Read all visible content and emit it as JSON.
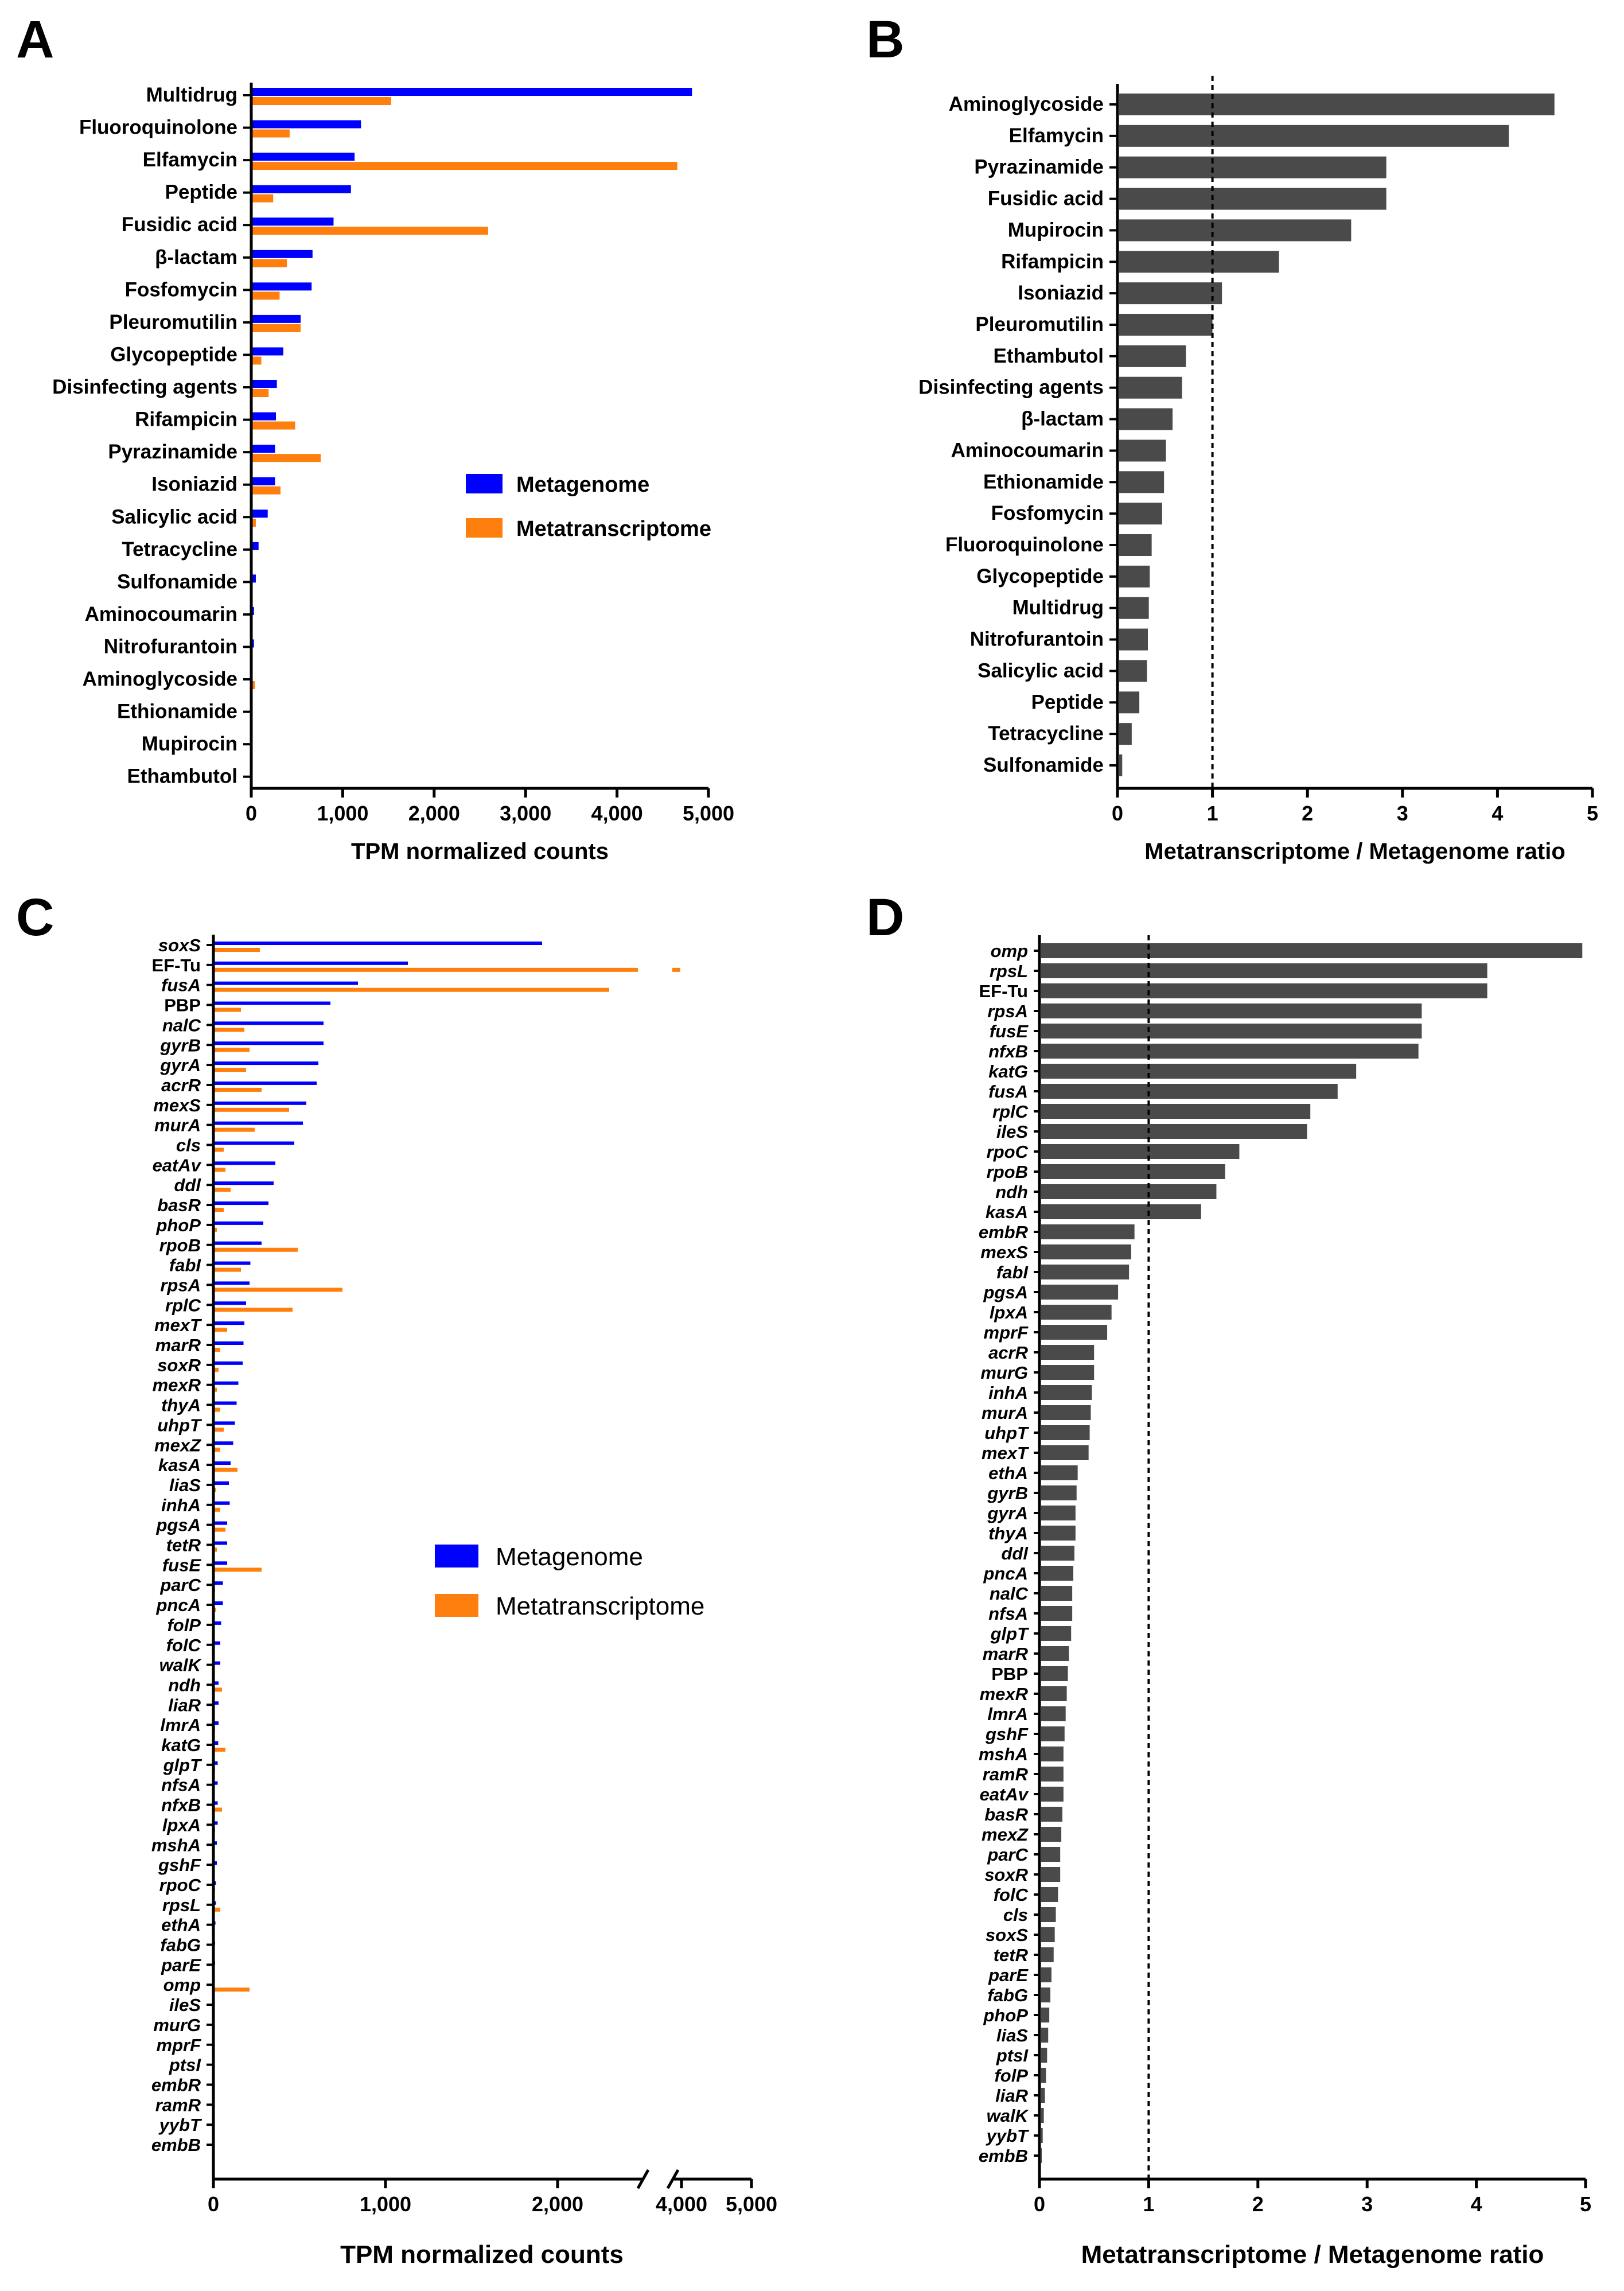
{
  "colors": {
    "metagenome": "#0000ff",
    "metatranscriptome": "#ff7f0e",
    "ratio_bar": "#4a4a4a",
    "axis": "#000000"
  },
  "legend": {
    "metagenome": "Metagenome",
    "metatranscriptome": "Metatranscriptome"
  },
  "chart_data": [
    {
      "panel": "A",
      "type": "bar",
      "orientation": "horizontal",
      "title": "",
      "xlabel": "TPM normalized counts",
      "ylabel": "",
      "xlim": [
        0,
        5000
      ],
      "xticks": [
        0,
        1000,
        2000,
        3000,
        4000,
        5000
      ],
      "xtick_labels": [
        "0",
        "1,000",
        "2,000",
        "3,000",
        "4,000",
        "5,000"
      ],
      "legend_position": "center-right",
      "categories": [
        "Multidrug",
        "Fluoroquinolone",
        "Elfamycin",
        "Peptide",
        "Fusidic acid",
        "β-lactam",
        "Fosfomycin",
        "Pleuromutilin",
        "Glycopeptide",
        "Disinfecting agents",
        "Rifampicin",
        "Pyrazinamide",
        "Isoniazid",
        "Salicylic acid",
        "Tetracycline",
        "Sulfonamide",
        "Aminocoumarin",
        "Nitrofurantoin",
        "Aminoglycoside",
        "Ethionamide",
        "Mupirocin",
        "Ethambutol"
      ],
      "series": [
        {
          "name": "Metagenome",
          "values": [
            4820,
            1200,
            1130,
            1090,
            900,
            670,
            660,
            540,
            350,
            280,
            270,
            260,
            260,
            180,
            80,
            50,
            30,
            30,
            15,
            5,
            3,
            3
          ]
        },
        {
          "name": "Metatranscriptome",
          "values": [
            1530,
            420,
            4660,
            240,
            2590,
            390,
            310,
            540,
            110,
            190,
            480,
            760,
            320,
            50,
            15,
            10,
            10,
            10,
            40,
            3,
            3,
            3
          ]
        }
      ]
    },
    {
      "panel": "B",
      "type": "bar",
      "orientation": "horizontal",
      "title": "",
      "xlabel": "Metatranscriptome / Metagenome ratio",
      "ylabel": "",
      "xlim": [
        0,
        5
      ],
      "xticks": [
        0,
        1,
        2,
        3,
        4,
        5
      ],
      "xtick_labels": [
        "0",
        "1",
        "2",
        "3",
        "4",
        "5"
      ],
      "reference_line": 1,
      "categories": [
        "Aminoglycoside",
        "Elfamycin",
        "Pyrazinamide",
        "Fusidic acid",
        "Mupirocin",
        "Rifampicin",
        "Isoniazid",
        "Pleuromutilin",
        "Ethambutol",
        "Disinfecting agents",
        "β-lactam",
        "Aminocoumarin",
        "Ethionamide",
        "Fosfomycin",
        "Fluoroquinolone",
        "Glycopeptide",
        "Multidrug",
        "Nitrofurantoin",
        "Salicylic acid",
        "Peptide",
        "Tetracycline",
        "Sulfonamide"
      ],
      "values": [
        4.6,
        4.12,
        2.83,
        2.83,
        2.46,
        1.7,
        1.1,
        1.0,
        0.72,
        0.68,
        0.58,
        0.51,
        0.49,
        0.47,
        0.36,
        0.34,
        0.33,
        0.32,
        0.31,
        0.23,
        0.15,
        0.05
      ]
    },
    {
      "panel": "C",
      "type": "bar",
      "orientation": "horizontal",
      "title": "",
      "xlabel": "TPM normalized counts",
      "ylabel": "",
      "axis_break": [
        2500,
        4000
      ],
      "xticks": [
        0,
        1000,
        2000,
        4000,
        5000
      ],
      "xtick_labels": [
        "0",
        "1,000",
        "2,000",
        "4,000",
        "5,000"
      ],
      "legend_position": "center-right",
      "categories": [
        "soxS",
        "EF-Tu",
        "fusA",
        "PBP",
        "nalC",
        "gyrB",
        "gyrA",
        "acrR",
        "mexS",
        "murA",
        "cls",
        "eatAv",
        "ddl",
        "basR",
        "phoP",
        "rpoB",
        "fabI",
        "rpsA",
        "rplC",
        "mexT",
        "marR",
        "soxR",
        "mexR",
        "thyA",
        "uhpT",
        "mexZ",
        "kasA",
        "liaS",
        "inhA",
        "pgsA",
        "tetR",
        "fusE",
        "parC",
        "pncA",
        "folP",
        "folC",
        "walK",
        "ndh",
        "liaR",
        "lmrA",
        "katG",
        "glpT",
        "nfsA",
        "nfxB",
        "lpxA",
        "mshA",
        "gshF",
        "rpoC",
        "rpsL",
        "ethA",
        "fabG",
        "parE",
        "omp",
        "ileS",
        "murG",
        "mprF",
        "ptsI",
        "embR",
        "ramR",
        "yybT",
        "embB"
      ],
      "series": [
        {
          "name": "Metagenome",
          "values": [
            1910,
            1130,
            840,
            680,
            640,
            640,
            610,
            600,
            540,
            520,
            470,
            360,
            350,
            320,
            290,
            280,
            215,
            210,
            190,
            180,
            175,
            170,
            145,
            135,
            125,
            115,
            100,
            90,
            95,
            80,
            80,
            80,
            55,
            55,
            45,
            40,
            40,
            30,
            30,
            30,
            28,
            25,
            25,
            25,
            25,
            20,
            20,
            15,
            15,
            12,
            10,
            10,
            3,
            3,
            3,
            3,
            3,
            3,
            3,
            3,
            3
          ]
        },
        {
          "name": "Metatranscriptome",
          "values": [
            270,
            4100,
            2300,
            160,
            180,
            210,
            190,
            280,
            440,
            240,
            60,
            70,
            100,
            60,
            20,
            490,
            160,
            750,
            460,
            80,
            40,
            30,
            20,
            40,
            60,
            40,
            140,
            15,
            40,
            70,
            20,
            280,
            10,
            15,
            5,
            5,
            5,
            50,
            5,
            10,
            70,
            10,
            5,
            50,
            10,
            5,
            5,
            10,
            40,
            5,
            3,
            3,
            210,
            3,
            3,
            3,
            3,
            3,
            3,
            3,
            3
          ]
        }
      ]
    },
    {
      "panel": "D",
      "type": "bar",
      "orientation": "horizontal",
      "title": "",
      "xlabel": "Metatranscriptome / Metagenome ratio",
      "ylabel": "",
      "xlim": [
        0,
        5
      ],
      "xticks": [
        0,
        1,
        2,
        3,
        4,
        5
      ],
      "xtick_labels": [
        "0",
        "1",
        "2",
        "3",
        "4",
        "5"
      ],
      "reference_line": 1,
      "categories": [
        "omp",
        "rpsL",
        "EF-Tu",
        "rpsA",
        "fusE",
        "nfxB",
        "katG",
        "fusA",
        "rplC",
        "ileS",
        "rpoC",
        "rpoB",
        "ndh",
        "kasA",
        "embR",
        "mexS",
        "fabI",
        "pgsA",
        "lpxA",
        "mprF",
        "acrR",
        "murG",
        "inhA",
        "murA",
        "uhpT",
        "mexT",
        "ethA",
        "gyrB",
        "gyrA",
        "thyA",
        "ddl",
        "pncA",
        "nalC",
        "nfsA",
        "glpT",
        "marR",
        "PBP",
        "mexR",
        "lmrA",
        "gshF",
        "mshA",
        "ramR",
        "eatAv",
        "basR",
        "mexZ",
        "parC",
        "soxR",
        "folC",
        "cls",
        "soxS",
        "tetR",
        "parE",
        "fabG",
        "phoP",
        "liaS",
        "ptsI",
        "folP",
        "liaR",
        "walK",
        "yybT",
        "embB"
      ],
      "values": [
        4.97,
        4.1,
        4.1,
        3.5,
        3.5,
        3.47,
        2.9,
        2.73,
        2.48,
        2.45,
        1.83,
        1.7,
        1.62,
        1.48,
        0.87,
        0.84,
        0.82,
        0.72,
        0.66,
        0.62,
        0.5,
        0.5,
        0.48,
        0.47,
        0.46,
        0.45,
        0.35,
        0.34,
        0.33,
        0.33,
        0.32,
        0.31,
        0.3,
        0.3,
        0.29,
        0.27,
        0.26,
        0.25,
        0.24,
        0.23,
        0.22,
        0.22,
        0.22,
        0.21,
        0.2,
        0.19,
        0.19,
        0.17,
        0.15,
        0.14,
        0.13,
        0.11,
        0.1,
        0.09,
        0.08,
        0.07,
        0.06,
        0.05,
        0.04,
        0.03,
        0.02
      ]
    }
  ]
}
